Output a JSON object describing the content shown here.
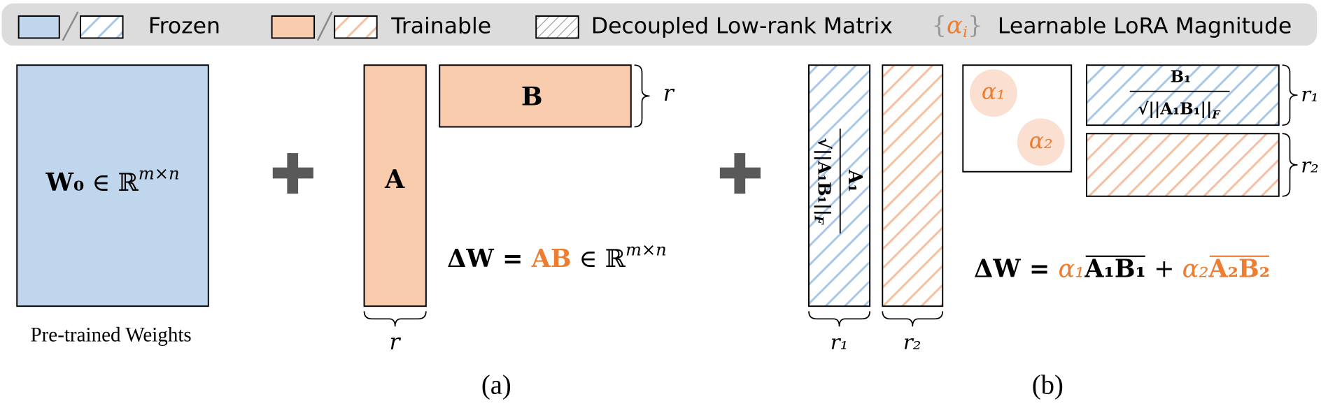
{
  "legend": {
    "frozen": "Frozen",
    "trainable": "Trainable",
    "decoupled": "Decoupled Low-rank Matrix",
    "magnitude_symbol": {
      "open": "{",
      "alpha": "α",
      "sub": "i",
      "close": "}"
    },
    "magnitude": "Learnable LoRA Magnitude"
  },
  "panel_a": {
    "w0": {
      "base": "W₀",
      "rel": " ∈ ℝ",
      "sup": "m×n"
    },
    "w0_caption": "Pre-trained Weights",
    "a_label": "A",
    "b_label": "B",
    "rank_b": "r",
    "rank_a": "r",
    "delta": {
      "lhs": "ΔW = ",
      "ab": "AB",
      "rel": " ∈ ℝ",
      "sup": "m×n"
    },
    "caption": "(a)"
  },
  "panel_b": {
    "a1_fraction": {
      "num": "A₁",
      "den": "√||A₁B₁||",
      "den_sub": "F"
    },
    "rank_1": "r₁",
    "rank_2": "r₂",
    "alpha_1": "α₁",
    "alpha_2": "α₂",
    "b1_fraction": {
      "num": "B₁",
      "den": "√||A₁B₁||",
      "den_sub": "F"
    },
    "rank_b1": "r₁",
    "rank_b2": "r₂",
    "delta": {
      "lhs": "ΔW = ",
      "alpha_1": "α₁",
      "term_1": "A₁B₁",
      "plus": " + ",
      "alpha_2": "α₂",
      "term_2": "A₂B₂"
    },
    "caption": "(b)"
  }
}
